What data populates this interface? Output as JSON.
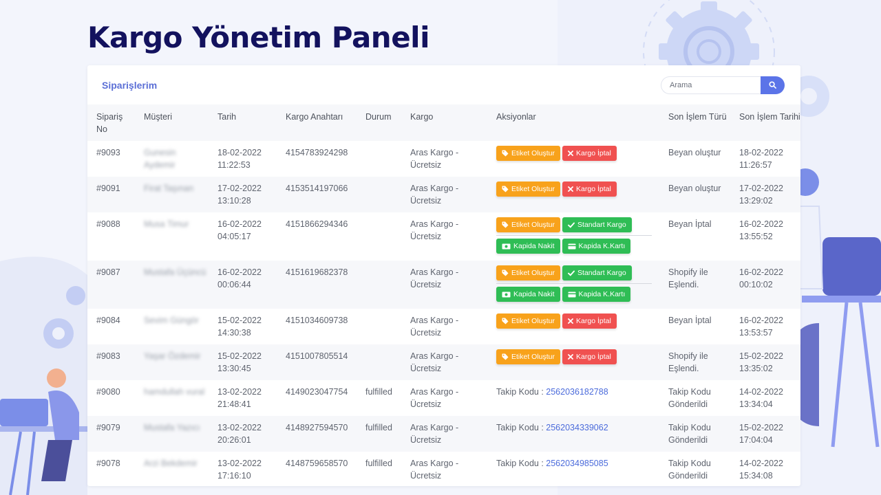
{
  "page_title": "Kargo Yönetim Paneli",
  "panel": {
    "title": "Siparişlerim",
    "search": {
      "placeholder": "Arama",
      "value": ""
    }
  },
  "columns": [
    "Sipariş No",
    "Müşteri",
    "Tarih",
    "Kargo Anahtarı",
    "Durum",
    "Kargo",
    "Aksiyonlar",
    "Son İşlem Türü",
    "Son İşlem Tarihi"
  ],
  "labels": {
    "etiket_olustur": "Etiket Oluştur",
    "kargo_iptal": "Kargo İptal",
    "standart_kargo": "Standart Kargo",
    "kapida_nakit": "Kapida Nakit",
    "kapida_kart": "Kapida K.Kartı",
    "takip_kodu": "Takip Kodu :"
  },
  "rows": [
    {
      "order": "#9093",
      "customer": "Gunesin Aydemir",
      "date": "18-02-2022 11:22:53",
      "key": "4154783924298",
      "status": "",
      "cargo": "Aras Kargo - Ücretsiz",
      "actions": "iptal",
      "tracking": "",
      "last_type": "Beyan oluştur",
      "last_date": "18-02-2022 11:26:57"
    },
    {
      "order": "#9091",
      "customer": "Firat Taşınan",
      "date": "17-02-2022 13:10:28",
      "key": "4153514197066",
      "status": "",
      "cargo": "Aras Kargo - Ücretsiz",
      "actions": "iptal",
      "tracking": "",
      "last_type": "Beyan oluştur",
      "last_date": "17-02-2022 13:29:02"
    },
    {
      "order": "#9088",
      "customer": "Musa Timur",
      "date": "16-02-2022 04:05:17",
      "key": "4151866294346",
      "status": "",
      "cargo": "Aras Kargo - Ücretsiz",
      "actions": "standart",
      "tracking": "",
      "last_type": "Beyan İptal",
      "last_date": "16-02-2022 13:55:52"
    },
    {
      "order": "#9087",
      "customer": "Mustafa Üçüncü",
      "date": "16-02-2022 00:06:44",
      "key": "4151619682378",
      "status": "",
      "cargo": "Aras Kargo - Ücretsiz",
      "actions": "standart",
      "tracking": "",
      "last_type": "Shopify ile Eşlendi.",
      "last_date": "16-02-2022 00:10:02"
    },
    {
      "order": "#9084",
      "customer": "Sevim Güngör",
      "date": "15-02-2022 14:30:38",
      "key": "4151034609738",
      "status": "",
      "cargo": "Aras Kargo - Ücretsiz",
      "actions": "iptal",
      "tracking": "",
      "last_type": "Beyan İptal",
      "last_date": "16-02-2022 13:53:57"
    },
    {
      "order": "#9083",
      "customer": "Yaşar Özdemir",
      "date": "15-02-2022 13:30:45",
      "key": "4151007805514",
      "status": "",
      "cargo": "Aras Kargo - Ücretsiz",
      "actions": "iptal",
      "tracking": "",
      "last_type": "Shopify ile Eşlendi.",
      "last_date": "15-02-2022 13:35:02"
    },
    {
      "order": "#9080",
      "customer": "hamdullah vural",
      "date": "13-02-2022 21:48:41",
      "key": "4149023047754",
      "status": "fulfilled",
      "cargo": "Aras Kargo - Ücretsiz",
      "actions": "takip",
      "tracking": "2562036182788",
      "last_type": "Takip Kodu Gönderildi",
      "last_date": "14-02-2022 13:34:04"
    },
    {
      "order": "#9079",
      "customer": "Mustafa Yazıcı",
      "date": "13-02-2022 20:26:01",
      "key": "4148927594570",
      "status": "fulfilled",
      "cargo": "Aras Kargo - Ücretsiz",
      "actions": "takip",
      "tracking": "2562034339062",
      "last_type": "Takip Kodu Gönderildi",
      "last_date": "15-02-2022 17:04:04"
    },
    {
      "order": "#9078",
      "customer": "Arzi Bekdemir",
      "date": "13-02-2022 17:16:10",
      "key": "4148759658570",
      "status": "fulfilled",
      "cargo": "Aras Kargo - Ücretsiz",
      "actions": "takip",
      "tracking": "2562034985085",
      "last_type": "Takip Kodu Gönderildi",
      "last_date": "14-02-2022 15:34:08"
    }
  ],
  "icons": {
    "search": "search-icon",
    "tag": "tag-icon",
    "close": "close-icon",
    "check": "check-icon",
    "cash": "cash-icon",
    "card": "credit-card-icon"
  },
  "colors": {
    "title": "#13125e",
    "accent": "#5b74e8",
    "orange": "#f8a21b",
    "red": "#f05150",
    "green": "#2fbd55",
    "link": "#4b6bdb"
  }
}
